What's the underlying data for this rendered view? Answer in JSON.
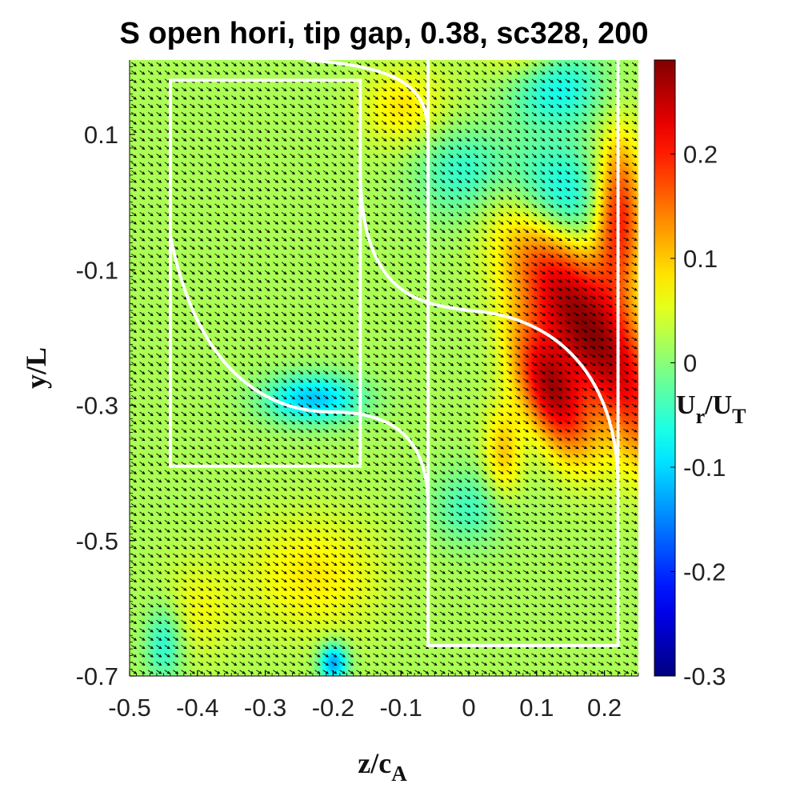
{
  "chart_data": {
    "type": "heatmap",
    "title": "S open hori, tip gap, 0.38, sc328, 200",
    "xlabel": {
      "main": "z/c",
      "sub": "A"
    },
    "ylabel": "y/L",
    "colorbar_label": {
      "U": "U",
      "r": "r",
      "slash": "/",
      "U2": "U",
      "T": "T"
    },
    "xlim": [
      -0.5,
      0.25
    ],
    "ylim": [
      -0.7,
      0.21
    ],
    "clim": [
      -0.3,
      0.29
    ],
    "colormap": "jet",
    "x_ticks": [
      {
        "value": -0.5,
        "label": "-0.5"
      },
      {
        "value": -0.4,
        "label": "-0.4"
      },
      {
        "value": -0.3,
        "label": "-0.3"
      },
      {
        "value": -0.2,
        "label": "-0.2"
      },
      {
        "value": -0.1,
        "label": "-0.1"
      },
      {
        "value": 0,
        "label": "0"
      },
      {
        "value": 0.1,
        "label": "0.1"
      },
      {
        "value": 0.2,
        "label": "0.2"
      }
    ],
    "y_ticks": [
      {
        "value": 0.1,
        "label": "0.1"
      },
      {
        "value": -0.1,
        "label": "-0.1"
      },
      {
        "value": -0.3,
        "label": "-0.3"
      },
      {
        "value": -0.5,
        "label": "-0.5"
      },
      {
        "value": -0.7,
        "label": "-0.7"
      }
    ],
    "colorbar_ticks": [
      {
        "value": 0.2,
        "label": "0.2"
      },
      {
        "value": 0.1,
        "label": "0.1"
      },
      {
        "value": 0,
        "label": "0"
      },
      {
        "value": -0.1,
        "label": "-0.1"
      },
      {
        "value": -0.2,
        "label": "-0.2"
      },
      {
        "value": -0.3,
        "label": "-0.3"
      }
    ],
    "background_value": 0.02,
    "features": [
      {
        "z": 0.17,
        "y": -0.18,
        "value": 0.28,
        "sz": 0.045,
        "sy": 0.16,
        "rot": -0.55
      },
      {
        "z": 0.22,
        "y": -0.02,
        "value": 0.22,
        "sz": 0.025,
        "sy": 0.08,
        "rot": 0
      },
      {
        "z": 0.12,
        "y": -0.28,
        "value": 0.24,
        "sz": 0.03,
        "sy": 0.07,
        "rot": -0.4
      },
      {
        "z": 0.05,
        "y": -0.37,
        "value": 0.1,
        "sz": 0.02,
        "sy": 0.05,
        "rot": 0
      },
      {
        "z": 0.12,
        "y": 0.0,
        "value": -0.1,
        "sz": 0.06,
        "sy": 0.06,
        "rot": 0
      },
      {
        "z": 0.0,
        "y": 0.05,
        "value": -0.08,
        "sz": 0.05,
        "sy": 0.05,
        "rot": 0
      },
      {
        "z": 0.13,
        "y": 0.17,
        "value": -0.07,
        "sz": 0.05,
        "sy": 0.04,
        "rot": 0
      },
      {
        "z": -0.23,
        "y": -0.29,
        "value": -0.11,
        "sz": 0.05,
        "sy": 0.025,
        "rot": 0
      },
      {
        "z": -0.1,
        "y": 0.14,
        "value": 0.08,
        "sz": 0.04,
        "sy": 0.04,
        "rot": 0
      },
      {
        "z": -0.23,
        "y": -0.55,
        "value": 0.08,
        "sz": 0.07,
        "sy": 0.06,
        "rot": 0
      },
      {
        "z": -0.2,
        "y": -0.68,
        "value": -0.13,
        "sz": 0.015,
        "sy": 0.02,
        "rot": 0
      },
      {
        "z": -0.45,
        "y": -0.65,
        "value": -0.06,
        "sz": 0.02,
        "sy": 0.04,
        "rot": 0
      },
      {
        "z": -0.4,
        "y": -0.6,
        "value": 0.06,
        "sz": 0.04,
        "sy": 0.05,
        "rot": 0
      },
      {
        "z": 0.0,
        "y": -0.45,
        "value": -0.04,
        "sz": 0.04,
        "sy": 0.04,
        "rot": 0
      },
      {
        "z": 0.08,
        "y": 0.22,
        "value": 0.07,
        "sz": 0.04,
        "sy": 0.03,
        "rot": 0
      }
    ],
    "vector_field": {
      "count_z": 61,
      "count_y": 74,
      "description": "black in-plane velocity arrows",
      "vortices": [
        {
          "z": 0.13,
          "y": 0.0,
          "strength": 0.06
        },
        {
          "z": -0.23,
          "y": -0.3,
          "strength": 0.035
        },
        {
          "z": 0.08,
          "y": -0.42,
          "strength": 0.03
        }
      ],
      "base_flow": [
        0.03,
        -0.02
      ]
    },
    "outline": {
      "color": "#ffffff",
      "shapes": [
        {
          "kind": "box",
          "z0": -0.44,
          "z1": -0.16,
          "y0": -0.39,
          "y1": 0.18
        },
        {
          "kind": "box",
          "z0": -0.06,
          "z1": 0.22,
          "y0": -0.655,
          "y1": 0.24
        }
      ]
    }
  },
  "colors": {
    "outline": "#ffffff",
    "arrows": "#000000",
    "frame": "#000000"
  }
}
